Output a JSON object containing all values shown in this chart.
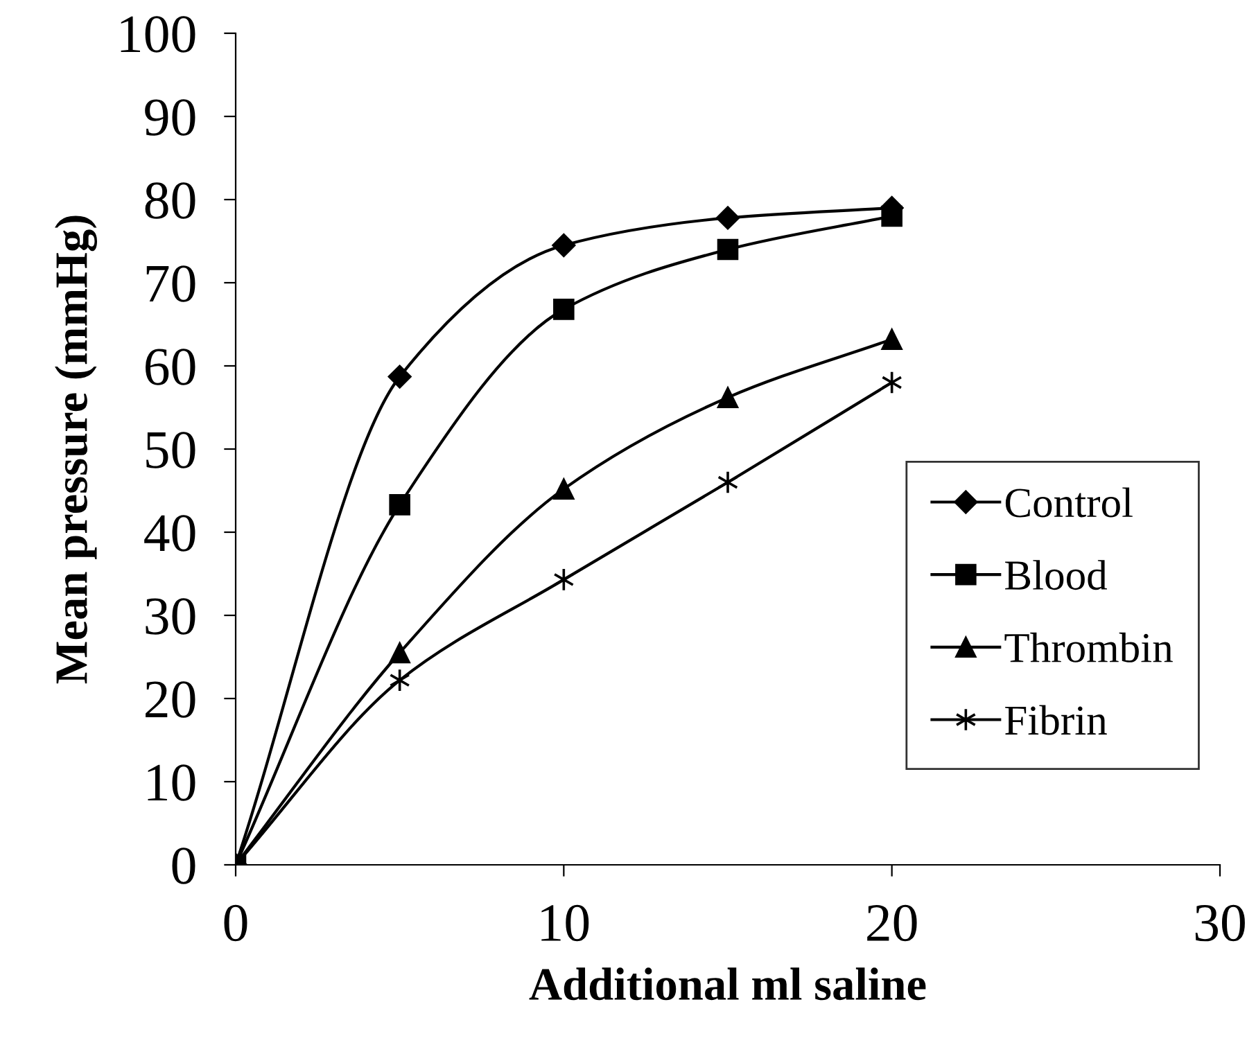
{
  "chart_data": {
    "type": "line",
    "xlabel": "Additional ml saline",
    "ylabel": "Mean pressure (mmHg)",
    "x": [
      0,
      5,
      10,
      15,
      20
    ],
    "series": [
      {
        "name": "Control",
        "color": "#000000",
        "marker": "diamond",
        "values": [
          0,
          58.7,
          74.5,
          77.8,
          79
        ]
      },
      {
        "name": "Blood",
        "color": "#000000",
        "marker": "square",
        "values": [
          0,
          43.3,
          66.8,
          74,
          78
        ]
      },
      {
        "name": "Thrombin",
        "color": "#000000",
        "marker": "triangle",
        "values": [
          0,
          25.5,
          45.2,
          56.2,
          63.2
        ]
      },
      {
        "name": "Fibrin",
        "color": "#000000",
        "marker": "cross",
        "values": [
          0,
          22.2,
          34.3,
          46,
          58
        ]
      }
    ],
    "xlim": [
      0,
      30
    ],
    "xticks": [
      0,
      10,
      20,
      30
    ],
    "ylim": [
      0,
      100
    ],
    "yticks": [
      0,
      10,
      20,
      30,
      40,
      50,
      60,
      70,
      80,
      90,
      100
    ],
    "grid": false,
    "legend": "right",
    "line_style": "solid"
  }
}
